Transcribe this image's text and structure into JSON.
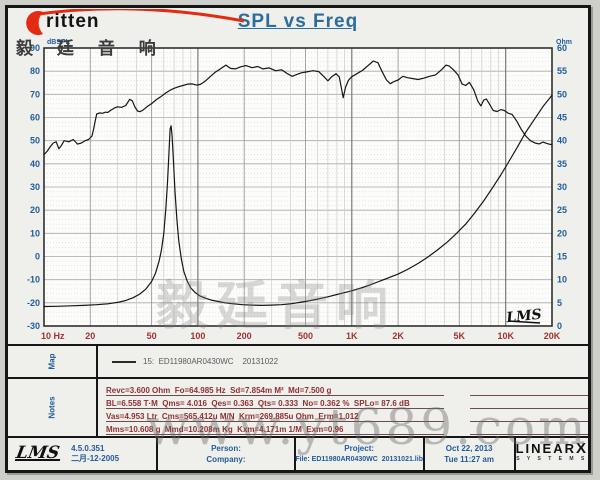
{
  "header": {
    "logo_text": "ritten",
    "title": "SPL vs Freq"
  },
  "watermarks": {
    "top_left_cn": "毅 廷 音 响",
    "center_cn": "毅廷音响",
    "bottom": "www.yt689.com"
  },
  "chart_data": {
    "type": "line",
    "title": "SPL vs Freq",
    "grid": true,
    "x_axis": {
      "scale": "log",
      "min": 10,
      "max": 20000,
      "ticks": [
        10,
        20,
        50,
        100,
        200,
        500,
        1000,
        2000,
        5000,
        10000,
        20000
      ],
      "tick_labels": [
        "10 Hz",
        "20",
        "50",
        "100",
        "200",
        "500",
        "1K",
        "2K",
        "5K",
        "10K",
        "20K"
      ]
    },
    "y_left": {
      "label": "dBSPL",
      "min": -30,
      "max": 90,
      "step": 10
    },
    "y_right": {
      "label": "Ohm",
      "min": 0,
      "max": 60,
      "step": 5
    },
    "corner_logo": "LMS",
    "series": [
      {
        "name": "SPL (dBSPL)",
        "axis": "left",
        "color": "#161616",
        "points": [
          [
            10,
            44
          ],
          [
            10.5,
            45.5
          ],
          [
            11,
            47.5
          ],
          [
            11.5,
            49
          ],
          [
            12,
            49.5
          ],
          [
            12.5,
            46.5
          ],
          [
            13,
            48
          ],
          [
            13.5,
            50
          ],
          [
            14.5,
            49.5
          ],
          [
            15.5,
            50.5
          ],
          [
            16.5,
            48.5
          ],
          [
            17.5,
            49
          ],
          [
            18.5,
            50
          ],
          [
            19.5,
            50.5
          ],
          [
            20.5,
            52
          ],
          [
            21,
            55
          ],
          [
            21.5,
            58.5
          ],
          [
            22,
            61.5
          ],
          [
            23,
            62
          ],
          [
            24,
            61.8
          ],
          [
            25,
            62.3
          ],
          [
            26,
            62.2
          ],
          [
            27,
            63
          ],
          [
            28.5,
            64
          ],
          [
            30,
            64.6
          ],
          [
            32,
            64.4
          ],
          [
            34,
            65.2
          ],
          [
            36,
            67.8
          ],
          [
            37.5,
            67.2
          ],
          [
            39,
            64.5
          ],
          [
            40.5,
            62.8
          ],
          [
            42,
            62.5
          ],
          [
            44,
            63.2
          ],
          [
            47,
            64.8
          ],
          [
            50,
            66
          ],
          [
            54,
            67.8
          ],
          [
            58,
            69.2
          ],
          [
            62,
            70.6
          ],
          [
            66,
            71.8
          ],
          [
            70,
            72.6
          ],
          [
            75,
            73.3
          ],
          [
            80,
            73.8
          ],
          [
            86,
            74.4
          ],
          [
            92,
            74.5
          ],
          [
            98,
            74
          ],
          [
            104,
            74.3
          ],
          [
            112,
            75.8
          ],
          [
            120,
            77.6
          ],
          [
            130,
            79.6
          ],
          [
            140,
            81
          ],
          [
            152,
            82.6
          ],
          [
            163,
            81.2
          ],
          [
            175,
            81
          ],
          [
            190,
            81.9
          ],
          [
            205,
            82.4
          ],
          [
            225,
            81.5
          ],
          [
            245,
            82
          ],
          [
            265,
            81
          ],
          [
            290,
            81.4
          ],
          [
            320,
            80.2
          ],
          [
            350,
            80.6
          ],
          [
            380,
            79
          ],
          [
            410,
            77.8
          ],
          [
            440,
            78.6
          ],
          [
            470,
            79.3
          ],
          [
            510,
            79.7
          ],
          [
            560,
            80.2
          ],
          [
            610,
            79.8
          ],
          [
            660,
            77.6
          ],
          [
            700,
            75.8
          ],
          [
            740,
            77.6
          ],
          [
            790,
            78.9
          ],
          [
            830,
            77.5
          ],
          [
            860,
            72
          ],
          [
            880,
            68.5
          ],
          [
            910,
            73
          ],
          [
            950,
            76
          ],
          [
            1000,
            77.6
          ],
          [
            1080,
            78.9
          ],
          [
            1170,
            80.3
          ],
          [
            1270,
            82.3
          ],
          [
            1380,
            84.4
          ],
          [
            1480,
            83.6
          ],
          [
            1570,
            80
          ],
          [
            1680,
            76.2
          ],
          [
            1780,
            74.6
          ],
          [
            1890,
            75.6
          ],
          [
            2000,
            76.2
          ],
          [
            2150,
            77.8
          ],
          [
            2300,
            77.2
          ],
          [
            2500,
            76.8
          ],
          [
            2700,
            76.4
          ],
          [
            2950,
            77
          ],
          [
            3200,
            77.8
          ],
          [
            3500,
            78.4
          ],
          [
            3800,
            80.4
          ],
          [
            4100,
            82.6
          ],
          [
            4300,
            82.2
          ],
          [
            4600,
            80.4
          ],
          [
            4900,
            78.4
          ],
          [
            5200,
            74.5
          ],
          [
            5500,
            73.8
          ],
          [
            5800,
            75.2
          ],
          [
            6200,
            72
          ],
          [
            6600,
            67
          ],
          [
            6900,
            65
          ],
          [
            7200,
            67.5
          ],
          [
            7500,
            68
          ],
          [
            7900,
            65.5
          ],
          [
            8300,
            63
          ],
          [
            8800,
            62.6
          ],
          [
            9300,
            63.4
          ],
          [
            9800,
            63
          ],
          [
            10400,
            61.8
          ],
          [
            11000,
            61.4
          ],
          [
            11800,
            58.5
          ],
          [
            12600,
            55
          ],
          [
            13500,
            52
          ],
          [
            14500,
            50
          ],
          [
            15500,
            49
          ],
          [
            16500,
            48.6
          ],
          [
            17500,
            49.4
          ],
          [
            18500,
            48.8
          ],
          [
            19500,
            48.4
          ],
          [
            20000,
            48.4
          ]
        ]
      },
      {
        "name": "Impedance (Ohm)",
        "axis": "right",
        "color": "#161616",
        "points": [
          [
            10,
            4.2
          ],
          [
            12,
            4.25
          ],
          [
            15,
            4.35
          ],
          [
            18,
            4.45
          ],
          [
            22,
            4.6
          ],
          [
            26,
            4.8
          ],
          [
            30,
            5.1
          ],
          [
            34,
            5.5
          ],
          [
            38,
            6.1
          ],
          [
            42,
            6.9
          ],
          [
            46,
            8
          ],
          [
            50,
            9.6
          ],
          [
            53,
            11.4
          ],
          [
            56,
            14
          ],
          [
            58,
            16.5
          ],
          [
            60,
            20
          ],
          [
            62,
            25.5
          ],
          [
            63.5,
            31
          ],
          [
            65,
            38
          ],
          [
            66,
            42.5
          ],
          [
            67,
            43.2
          ],
          [
            68,
            41
          ],
          [
            69.5,
            35
          ],
          [
            71,
            29
          ],
          [
            73,
            23
          ],
          [
            75,
            18.5
          ],
          [
            78,
            14.5
          ],
          [
            81,
            11.8
          ],
          [
            85,
            9.8
          ],
          [
            90,
            8.2
          ],
          [
            96,
            7.2
          ],
          [
            103,
            6.5
          ],
          [
            112,
            6
          ],
          [
            122,
            5.6
          ],
          [
            135,
            5.3
          ],
          [
            150,
            5
          ],
          [
            170,
            4.8
          ],
          [
            195,
            4.6
          ],
          [
            225,
            4.5
          ],
          [
            260,
            4.45
          ],
          [
            300,
            4.5
          ],
          [
            350,
            4.6
          ],
          [
            400,
            4.8
          ],
          [
            460,
            5.1
          ],
          [
            520,
            5.4
          ],
          [
            600,
            5.8
          ],
          [
            700,
            6.3
          ],
          [
            800,
            6.8
          ],
          [
            900,
            7.2
          ],
          [
            1000,
            7.6
          ],
          [
            1150,
            8.2
          ],
          [
            1300,
            8.8
          ],
          [
            1500,
            9.6
          ],
          [
            1700,
            10.3
          ],
          [
            2000,
            11.2
          ],
          [
            2300,
            12.2
          ],
          [
            2700,
            13.5
          ],
          [
            3100,
            14.8
          ],
          [
            3600,
            16.4
          ],
          [
            4200,
            18.2
          ],
          [
            4800,
            20
          ],
          [
            5500,
            22
          ],
          [
            6300,
            24.4
          ],
          [
            7200,
            27
          ],
          [
            8200,
            29.8
          ],
          [
            9300,
            32.6
          ],
          [
            10500,
            35.5
          ],
          [
            12000,
            38.8
          ],
          [
            13500,
            41.8
          ],
          [
            15500,
            44.8
          ],
          [
            17500,
            47.4
          ],
          [
            20000,
            49.8
          ]
        ]
      }
    ]
  },
  "map": {
    "tab": "Map",
    "legend_text": "15:  ED11980AR0430WC    20131022"
  },
  "notes": {
    "tab": "Notes",
    "lines": [
      "Revc=3.600 Ohm  Fo=64.985 Hz  Sd=7.854m M²  Md=7.500 g",
      "BL=6.558 T·M  Qms= 4.016  Qes= 0.363  Qts= 0.333  No= 0.362 %  SPLo= 87.6 dB",
      "Vas=4.953 Ltr  Cms=565.412u M/N  Krm=269.885u Ohm  Erm=1.012",
      "Mms=10.608 g  Mmd=10.208m Kg  Kxm=4.171m 1/M  Exm=0.96"
    ]
  },
  "footer": {
    "lms_logo": "LMS",
    "version": "4.5.0.351",
    "version_date": "二月-12-2005",
    "person_label": "Person:",
    "company_label": "Company:",
    "project_label": "Project:",
    "file_label": "File: ED11980AR0430WC  20131021.lib",
    "date": "Oct 22, 2013",
    "time": "Tue 11:27 am",
    "brand_main": "LINEAR",
    "brand_x": "X",
    "brand_sub": "S Y S T E M S"
  },
  "colors": {
    "accent_blue": "#1f5c9b",
    "freq_maroon": "#a03333",
    "notes_maroon": "#8f3131",
    "logo_red": "#e32b12",
    "curve": "#161616",
    "plot_bg": "#fcfcfa"
  }
}
